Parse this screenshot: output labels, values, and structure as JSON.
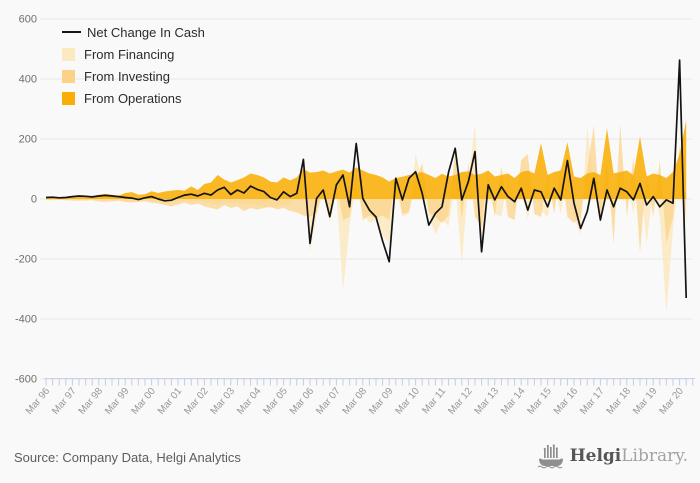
{
  "legend": {
    "items": [
      {
        "label": "Net Change In Cash",
        "type": "line",
        "color": "#141414"
      },
      {
        "label": "From Financing",
        "type": "area",
        "color": "#fde9c0"
      },
      {
        "label": "From Investing",
        "type": "area",
        "color": "#fbd287"
      },
      {
        "label": "From Operations",
        "type": "area",
        "color": "#f8ae06"
      }
    ]
  },
  "chart_data": {
    "type": "area",
    "title": "",
    "xlabel": "",
    "ylabel": "",
    "ylim": [
      -600,
      600
    ],
    "yticks": [
      600,
      400,
      200,
      0,
      -200,
      -400,
      -600
    ],
    "x_unit": "quarterly from Mar 96 to Jun 20",
    "x_tick_labels": [
      "Mar 96",
      "Mar 97",
      "Mar 98",
      "Mar 99",
      "Mar 00",
      "Mar 01",
      "Mar 02",
      "Mar 03",
      "Mar 04",
      "Mar 05",
      "Mar 06",
      "Mar 07",
      "Mar 08",
      "Mar 09",
      "Mar 10",
      "Mar 11",
      "Mar 12",
      "Mar 13",
      "Mar 14",
      "Mar 15",
      "Mar 16",
      "Mar 17",
      "Mar 18",
      "Mar 19",
      "Mar 20"
    ],
    "legend_position": "top-left",
    "grid": "horizontal",
    "series": [
      {
        "name": "From Financing",
        "type": "area",
        "color": "#fde9c0",
        "opacity": 0.85,
        "values": [
          2,
          3,
          2,
          2,
          3,
          4,
          3,
          2,
          4,
          5,
          4,
          3,
          -5,
          -8,
          -6,
          -4,
          -6,
          -10,
          -15,
          -10,
          -8,
          -5,
          -8,
          -6,
          -10,
          -15,
          -20,
          -10,
          -15,
          -10,
          -20,
          -15,
          -20,
          -25,
          -30,
          -25,
          -20,
          -15,
          30,
          90,
          -175,
          -50,
          20,
          -80,
          25,
          -305,
          -90,
          60,
          -45,
          -80,
          -70,
          -120,
          -150,
          40,
          -60,
          -45,
          150,
          60,
          -50,
          -120,
          -70,
          -90,
          50,
          -215,
          60,
          250,
          -130,
          30,
          -50,
          -60,
          80,
          -45,
          60,
          -70,
          50,
          -40,
          -60,
          45,
          -50,
          90,
          -60,
          -120,
          240,
          60,
          -80,
          45,
          -60,
          50,
          60,
          -45,
          80,
          -150,
          40,
          -60,
          -380,
          -100,
          120,
          260
        ]
      },
      {
        "name": "From Investing",
        "type": "area",
        "color": "#fbd287",
        "opacity": 0.72,
        "values": [
          -3,
          -4,
          -3,
          -4,
          -5,
          -6,
          -5,
          -4,
          -8,
          -10,
          -8,
          -6,
          -10,
          -12,
          -10,
          -8,
          -12,
          -15,
          -20,
          -25,
          -18,
          -12,
          -20,
          -15,
          -25,
          -30,
          -35,
          -20,
          -30,
          -25,
          -40,
          -30,
          -35,
          -30,
          -25,
          -35,
          -30,
          -40,
          -45,
          -55,
          -60,
          -45,
          40,
          -50,
          50,
          -70,
          -60,
          90,
          -70,
          -55,
          -65,
          -55,
          -70,
          80,
          -50,
          -45,
          60,
          120,
          -45,
          -60,
          -80,
          -55,
          160,
          -70,
          120,
          -60,
          -90,
          95,
          -60,
          110,
          -60,
          -70,
          130,
          150,
          -50,
          -60,
          90,
          -50,
          110,
          -60,
          -80,
          -60,
          100,
          245,
          -70,
          130,
          -150,
          250,
          -60,
          140,
          -180,
          90,
          -60,
          130,
          -150,
          -60,
          180,
          -80
        ]
      },
      {
        "name": "From Operations",
        "type": "area",
        "color": "#f8ae06",
        "opacity": 0.88,
        "values": [
          6,
          7,
          5,
          7,
          10,
          12,
          11,
          9,
          14,
          17,
          14,
          11,
          20,
          23,
          14,
          16,
          26,
          20,
          25,
          28,
          30,
          28,
          42,
          30,
          50,
          55,
          80,
          65,
          55,
          63,
          72,
          85,
          80,
          72,
          58,
          55,
          72,
          62,
          72,
          100,
          88,
          90,
          95,
          85,
          92,
          98,
          88,
          105,
          95,
          85,
          80,
          72,
          58,
          70,
          74,
          80,
          85,
          90,
          80,
          70,
          84,
          75,
          80,
          90,
          92,
          80,
          84,
          95,
          75,
          80,
          85,
          70,
          90,
          95,
          85,
          186,
          80,
          90,
          95,
          189,
          75,
          70,
          85,
          90,
          80,
          236,
          85,
          90,
          95,
          80,
          208,
          75,
          85,
          80,
          70,
          90,
          150,
          263
        ]
      },
      {
        "name": "Net Change In Cash",
        "type": "line",
        "color": "#141414",
        "opacity": 1,
        "values": [
          5,
          6,
          4,
          5,
          8,
          10,
          9,
          7,
          10,
          12,
          10,
          8,
          5,
          3,
          -2,
          4,
          8,
          0,
          -6,
          -4,
          5,
          13,
          16,
          10,
          19,
          13,
          30,
          39,
          15,
          30,
          20,
          43,
          32,
          25,
          5,
          -3,
          24,
          8,
          19,
          132,
          -148,
          2,
          30,
          -59,
          47,
          80,
          -26,
          185,
          2,
          -37,
          -60,
          -140,
          -209,
          69,
          -3,
          69,
          91,
          19,
          -87,
          -48,
          -26,
          90,
          169,
          -3,
          58,
          158,
          -176,
          47,
          -3,
          41,
          8,
          -9,
          36,
          -37,
          30,
          24,
          -26,
          36,
          -3,
          128,
          -14,
          -98,
          -42,
          69,
          -70,
          30,
          -26,
          36,
          24,
          -3,
          52,
          -20,
          8,
          -26,
          -3,
          -14,
          463,
          -330
        ]
      }
    ]
  },
  "footer": {
    "source": "Source: Company Data, Helgi Analytics",
    "logo_bold": "Helgi",
    "logo_light": "Library."
  }
}
